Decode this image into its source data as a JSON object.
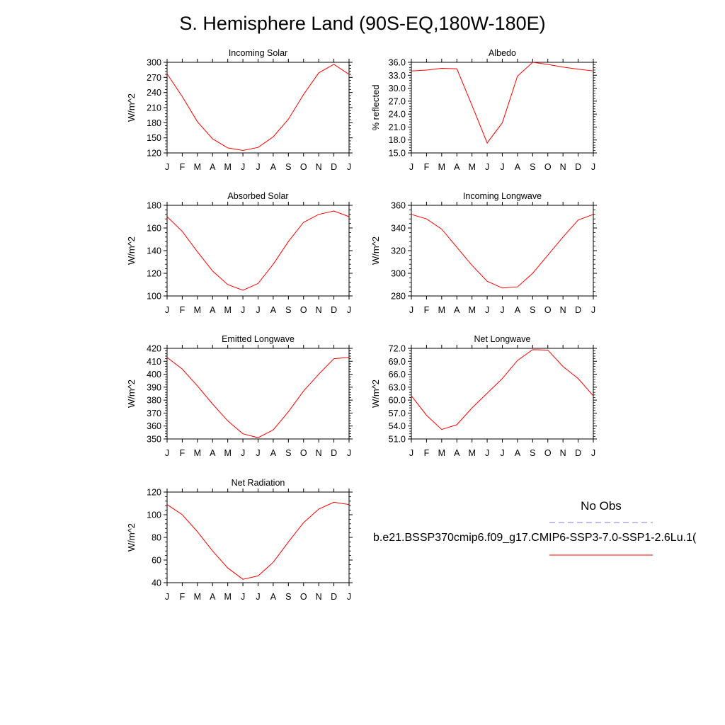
{
  "figure": {
    "title": "S. Hemisphere Land (90S-EQ,180W-180E)"
  },
  "legend": {
    "entries": [
      {
        "label": "No Obs",
        "color": "#7b7bdf",
        "style": "dashed"
      },
      {
        "label": "b.e21.BSSP370cmip6.f09_g17.CMIP6-SSP3-7.0-SSP1-2.6Lu.1(",
        "color": "#ff0000",
        "style": "solid"
      }
    ]
  },
  "chart_data": [
    {
      "type": "line",
      "title": "Incoming Solar",
      "ylabel": "W/m^2",
      "categories": [
        "J",
        "F",
        "M",
        "A",
        "M",
        "J",
        "J",
        "A",
        "S",
        "O",
        "N",
        "D",
        "J"
      ],
      "ylim": [
        120,
        300
      ],
      "yticks": [
        "120",
        "150",
        "180",
        "210",
        "240",
        "270",
        "300"
      ],
      "series": [
        {
          "values": [
            277,
            232,
            182,
            148,
            130,
            125,
            131,
            152,
            187,
            236,
            279,
            296,
            276
          ],
          "color": "#ff0000"
        }
      ]
    },
    {
      "type": "line",
      "title": "Albedo",
      "ylabel": "% reflected",
      "categories": [
        "J",
        "F",
        "M",
        "A",
        "M",
        "J",
        "J",
        "A",
        "S",
        "O",
        "N",
        "D",
        "J"
      ],
      "ylim": [
        15.0,
        36.0
      ],
      "yticks": [
        "15.0",
        "18.0",
        "21.0",
        "24.0",
        "27.0",
        "30.0",
        "33.0",
        "36.0"
      ],
      "series": [
        {
          "values": [
            34.0,
            34.2,
            34.6,
            34.5,
            26.0,
            17.3,
            22.0,
            32.8,
            36.0,
            35.5,
            34.9,
            34.4,
            34.0
          ],
          "color": "#ff0000"
        }
      ]
    },
    {
      "type": "line",
      "title": "Absorbed Solar",
      "ylabel": "W/m^2",
      "categories": [
        "J",
        "F",
        "M",
        "A",
        "M",
        "J",
        "J",
        "A",
        "S",
        "O",
        "N",
        "D",
        "J"
      ],
      "ylim": [
        100,
        180
      ],
      "yticks": [
        "100",
        "120",
        "140",
        "160",
        "180"
      ],
      "series": [
        {
          "values": [
            170,
            157,
            139,
            122,
            110,
            105,
            111,
            128,
            148,
            165,
            172,
            175,
            170
          ],
          "color": "#ff0000"
        }
      ]
    },
    {
      "type": "line",
      "title": "Incoming Longwave",
      "ylabel": "W/m^2",
      "categories": [
        "J",
        "F",
        "M",
        "A",
        "M",
        "J",
        "J",
        "A",
        "S",
        "O",
        "N",
        "D",
        "J"
      ],
      "ylim": [
        280,
        360
      ],
      "yticks": [
        "280",
        "300",
        "320",
        "340",
        "360"
      ],
      "series": [
        {
          "values": [
            352,
            348,
            339,
            323,
            307,
            293,
            287,
            288,
            300,
            316,
            332,
            347,
            352
          ],
          "color": "#ff0000"
        }
      ]
    },
    {
      "type": "line",
      "title": "Emitted Longwave",
      "ylabel": "W/m^2",
      "categories": [
        "J",
        "F",
        "M",
        "A",
        "M",
        "J",
        "J",
        "A",
        "S",
        "O",
        "N",
        "D",
        "J"
      ],
      "ylim": [
        350,
        420
      ],
      "yticks": [
        "350",
        "360",
        "370",
        "380",
        "390",
        "400",
        "410",
        "420"
      ],
      "series": [
        {
          "values": [
            413,
            404,
            391,
            377,
            364,
            354,
            351,
            357,
            371,
            387,
            400,
            412,
            413
          ],
          "color": "#ff0000"
        }
      ]
    },
    {
      "type": "line",
      "title": "Net Longwave",
      "ylabel": "W/m^2",
      "categories": [
        "J",
        "F",
        "M",
        "A",
        "M",
        "J",
        "J",
        "A",
        "S",
        "O",
        "N",
        "D",
        "J"
      ],
      "ylim": [
        51.0,
        72.0
      ],
      "yticks": [
        "51.0",
        "54.0",
        "57.0",
        "60.0",
        "63.0",
        "66.0",
        "69.0",
        "72.0"
      ],
      "series": [
        {
          "values": [
            61.0,
            56.5,
            53.2,
            54.3,
            58.2,
            61.6,
            65.0,
            69.2,
            71.7,
            71.6,
            67.8,
            65.0,
            61.0
          ],
          "color": "#ff0000"
        }
      ]
    },
    {
      "type": "line",
      "title": "Net Radiation",
      "ylabel": "W/m^2",
      "categories": [
        "J",
        "F",
        "M",
        "A",
        "M",
        "J",
        "J",
        "A",
        "S",
        "O",
        "N",
        "D",
        "J"
      ],
      "ylim": [
        40,
        120
      ],
      "yticks": [
        "40",
        "60",
        "80",
        "100",
        "120"
      ],
      "series": [
        {
          "values": [
            109,
            100,
            85,
            68,
            53,
            43,
            46,
            58,
            76,
            93,
            105,
            111,
            109
          ],
          "color": "#ff0000"
        }
      ]
    }
  ]
}
